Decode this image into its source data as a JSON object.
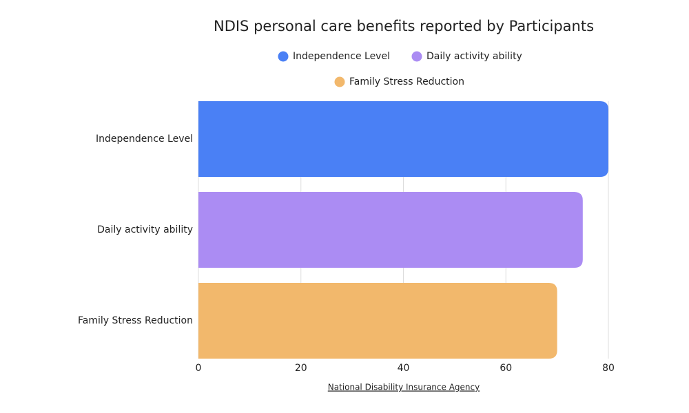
{
  "chart_data": {
    "type": "hbar",
    "title": "NDIS personal care benefits reported by Participants",
    "categories": [
      "Independence Level",
      "Daily activity ability",
      "Family Stress Reduction"
    ],
    "values": [
      80,
      75,
      70
    ],
    "colors": [
      "#4a80f5",
      "#ab8cf3",
      "#f2b86c"
    ],
    "xlim": [
      0,
      80
    ],
    "xticks": [
      0,
      20,
      40,
      60,
      80
    ],
    "grid": true,
    "source": "National Disability Insurance Agency"
  }
}
